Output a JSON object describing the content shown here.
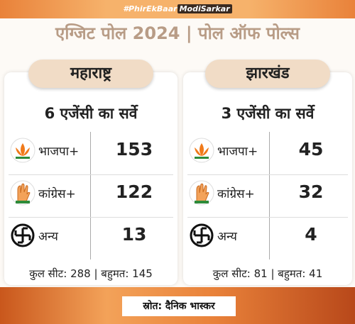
{
  "hashtag": {
    "prefix": "#PhirEkBaar",
    "highlight": "ModiSarkar"
  },
  "title": "एग्जिट पोल 2024 | पोल ऑफ पोल्स",
  "states": [
    {
      "name": "महाराष्ट्र",
      "survey": "6 एजेंसी का सर्वे",
      "rows": [
        {
          "party": "भाजपा+",
          "seats": 153
        },
        {
          "party": "कांग्रेस+",
          "seats": 122
        },
        {
          "party": "अन्य",
          "seats": 13
        }
      ],
      "footer": "कुल सीट: 288 | बहुमत: 145"
    },
    {
      "name": "झारखंड",
      "survey": "3 एजेंसी का सर्वे",
      "rows": [
        {
          "party": "भाजपा+",
          "seats": 45
        },
        {
          "party": "कांग्रेस+",
          "seats": 32
        },
        {
          "party": "अन्य",
          "seats": 4
        }
      ],
      "footer": "कुल सीट: 81 | बहुमत: 41"
    }
  ],
  "source": "स्रोत: दैनिक भास्कर"
}
